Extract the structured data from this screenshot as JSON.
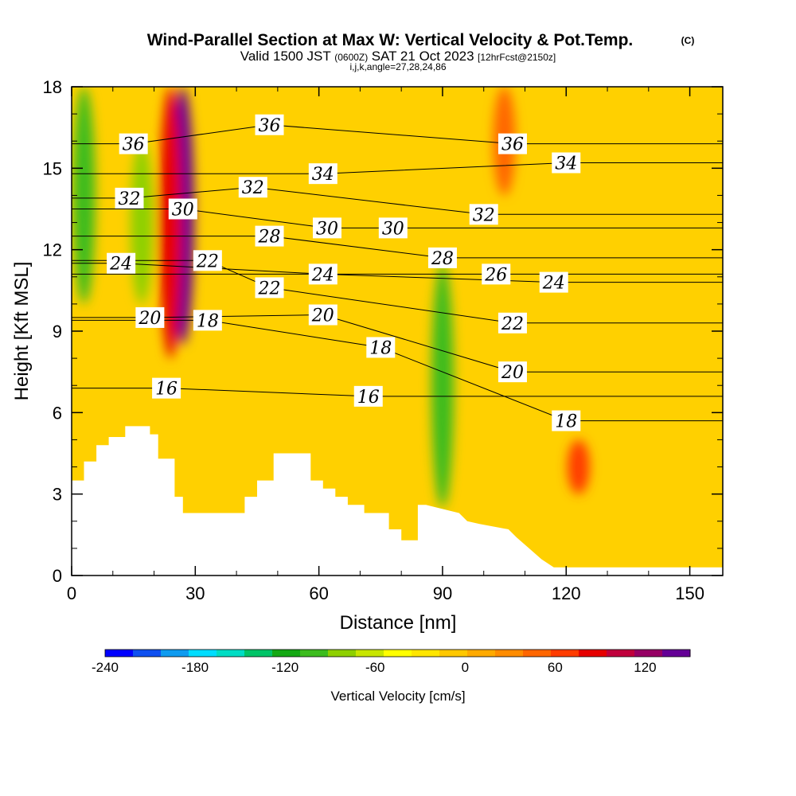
{
  "chart_data": {
    "type": "heatmap",
    "title": "Wind-Parallel Section at Max W: Vertical Velocity & Pot.Temp.",
    "copyright_mark": "(C)",
    "subtitle_parts": [
      "Valid 1500 JST",
      "(0600Z)",
      "SAT 21 Oct 2023",
      "[12hrFcst@2150z]"
    ],
    "subtitle2": "i,j,k,angle=27,28,24,86",
    "xlabel": "Distance [nm]",
    "ylabel": "Height [Kft MSL]",
    "xlim": [
      0,
      158
    ],
    "ylim": [
      0,
      18
    ],
    "x_ticks": [
      0,
      30,
      60,
      90,
      120,
      150
    ],
    "y_ticks": [
      0,
      3,
      6,
      9,
      12,
      15,
      18
    ],
    "colorbar": {
      "label": "Vertical Velocity [cm/s]",
      "range": [
        -240,
        150
      ],
      "ticks": [
        -240,
        -180,
        -120,
        -60,
        0,
        60,
        120
      ],
      "colors": [
        "#0000ff",
        "#0f50f0",
        "#0f9bf0",
        "#00ddff",
        "#00ddc4",
        "#00c467",
        "#14a814",
        "#3cbc1e",
        "#8ed000",
        "#c8e600",
        "#ffff00",
        "#ffe600",
        "#ffc800",
        "#ffaa00",
        "#ff8c00",
        "#ff6600",
        "#ff3c00",
        "#e60000",
        "#c0003c",
        "#960064",
        "#640096"
      ]
    },
    "vertical_velocity_features": [
      {
        "x": 27,
        "y_range": [
          8.5,
          18
        ],
        "value": 140
      },
      {
        "x": 24,
        "y_range": [
          8,
          18
        ],
        "value": 90
      },
      {
        "x": 3,
        "y_range": [
          10,
          18
        ],
        "value": -110
      },
      {
        "x": 17,
        "y_range": [
          10,
          16
        ],
        "value": -90
      },
      {
        "x": 90,
        "y_range": [
          2.5,
          11.5
        ],
        "value": -110
      },
      {
        "x": 123,
        "y_range": [
          3,
          5
        ],
        "value": 60
      },
      {
        "x": 105,
        "y_range": [
          14,
          18
        ],
        "value": 50
      }
    ],
    "theta_contour_labels": [
      {
        "value": "36",
        "x": 15,
        "y": 15.9
      },
      {
        "value": "36",
        "x": 48,
        "y": 16.6
      },
      {
        "value": "36",
        "x": 107,
        "y": 15.9
      },
      {
        "value": "34",
        "x": 61,
        "y": 14.8
      },
      {
        "value": "34",
        "x": 120,
        "y": 15.2
      },
      {
        "value": "32",
        "x": 14,
        "y": 13.9
      },
      {
        "value": "32",
        "x": 44,
        "y": 14.3
      },
      {
        "value": "32",
        "x": 100,
        "y": 13.3
      },
      {
        "value": "30",
        "x": 27,
        "y": 13.5
      },
      {
        "value": "30",
        "x": 62,
        "y": 12.8
      },
      {
        "value": "30",
        "x": 78,
        "y": 12.8
      },
      {
        "value": "28",
        "x": 48,
        "y": 12.5
      },
      {
        "value": "28",
        "x": 90,
        "y": 11.7
      },
      {
        "value": "26",
        "x": 103,
        "y": 11.1
      },
      {
        "value": "24",
        "x": 12,
        "y": 11.5
      },
      {
        "value": "24",
        "x": 61,
        "y": 11.1
      },
      {
        "value": "24",
        "x": 117,
        "y": 10.8
      },
      {
        "value": "22",
        "x": 33,
        "y": 11.6
      },
      {
        "value": "22",
        "x": 48,
        "y": 10.6
      },
      {
        "value": "22",
        "x": 107,
        "y": 9.3
      },
      {
        "value": "20",
        "x": 19,
        "y": 9.5
      },
      {
        "value": "20",
        "x": 61,
        "y": 9.6
      },
      {
        "value": "20",
        "x": 107,
        "y": 7.5
      },
      {
        "value": "18",
        "x": 33,
        "y": 9.4
      },
      {
        "value": "18",
        "x": 75,
        "y": 8.4
      },
      {
        "value": "18",
        "x": 120,
        "y": 5.7
      },
      {
        "value": "16",
        "x": 23,
        "y": 6.9
      },
      {
        "value": "16",
        "x": 72,
        "y": 6.6
      }
    ],
    "terrain": {
      "x": [
        0,
        3,
        3,
        6,
        6,
        9,
        9,
        13,
        13,
        19,
        19,
        21,
        21,
        25,
        25,
        27,
        27,
        32,
        32,
        42,
        42,
        45,
        45,
        49,
        49,
        58,
        58,
        61,
        61,
        64,
        64,
        67,
        67,
        71,
        71,
        77,
        77,
        80,
        80,
        84,
        84,
        86,
        86,
        94,
        94,
        96,
        96,
        99,
        99,
        106,
        106,
        108,
        108,
        111,
        111,
        114,
        114,
        117,
        117,
        158
      ],
      "height": [
        3.5,
        3.5,
        4.2,
        4.2,
        4.8,
        4.8,
        5.1,
        5.1,
        5.5,
        5.5,
        5.2,
        5.2,
        4.3,
        4.3,
        2.9,
        2.9,
        2.3,
        2.3,
        2.3,
        2.3,
        2.9,
        2.9,
        3.5,
        3.5,
        4.5,
        4.5,
        3.5,
        3.5,
        3.2,
        3.2,
        2.9,
        2.9,
        2.6,
        2.6,
        2.3,
        2.3,
        1.7,
        1.7,
        1.3,
        1.3,
        2.6,
        2.6,
        2.6,
        2.3,
        2.3,
        2.0,
        2.0,
        1.9,
        1.9,
        1.7,
        1.7,
        1.4,
        1.4,
        1.0,
        1.0,
        0.6,
        0.6,
        0.3,
        0.3,
        0.3
      ]
    }
  }
}
